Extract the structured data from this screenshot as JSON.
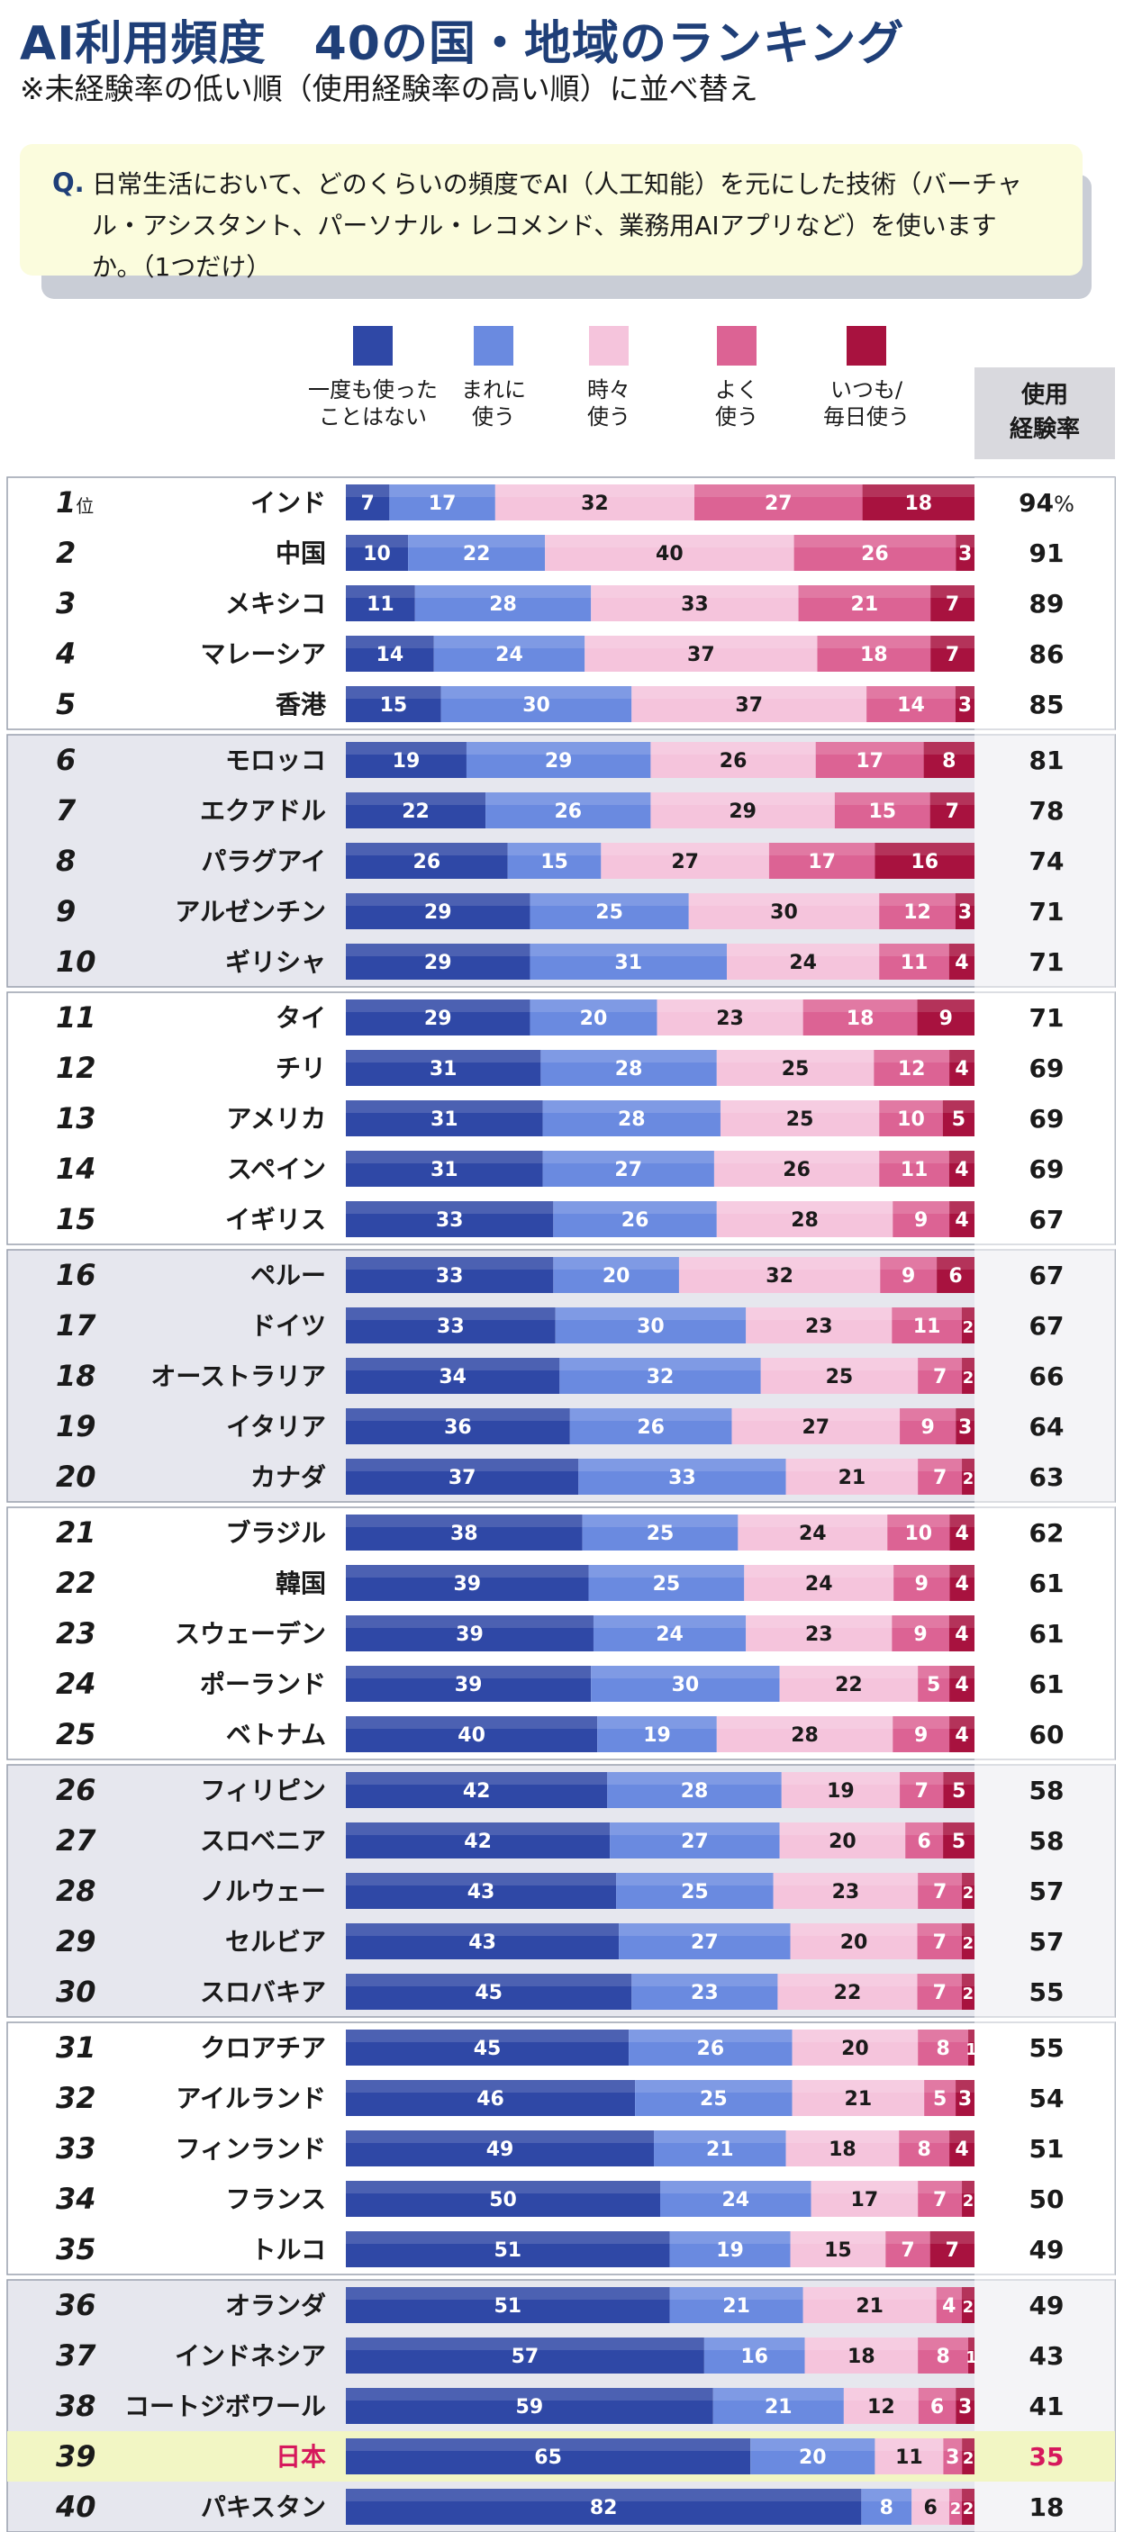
{
  "title": "AI利用頻度　40の国・地域のランキング",
  "subtitle": "※未経験率の低い順（使用経験率の高い順）に並べ替え",
  "question": {
    "label": "Q.",
    "text": "日常生活において、どのくらいの頻度でAI（人工知能）を元にした技術（バーチャル・アシスタント、パーソナル・レコメンド、業務用AIアプリなど）を使いますか。（1つだけ）"
  },
  "legend": [
    {
      "label": "一度も使った\nことはない",
      "color": "#2f48a6"
    },
    {
      "label": "まれに\n使う",
      "color": "#6a8ae0"
    },
    {
      "label": "時々\n使う",
      "color": "#f5c4dc"
    },
    {
      "label": "よく\n使う",
      "color": "#dc6394"
    },
    {
      "label": "いつも/\n毎日使う",
      "color": "#a8123f"
    }
  ],
  "column_header": "使用\n経験率",
  "rank_suffix": "位",
  "percent_suffix": "%",
  "highlight_color": "#d6185c",
  "chart_data": {
    "type": "bar",
    "orientation": "horizontal",
    "stacked": true,
    "xlim": [
      0,
      100
    ],
    "series_names": [
      "一度も使ったことはない",
      "まれに使う",
      "時々使う",
      "よく使う",
      "いつも/毎日使う"
    ],
    "rows": [
      {
        "rank": 1,
        "country": "インド",
        "values": [
          7,
          17,
          32,
          27,
          18
        ],
        "experience": 94
      },
      {
        "rank": 2,
        "country": "中国",
        "values": [
          10,
          22,
          40,
          26,
          3
        ],
        "experience": 91
      },
      {
        "rank": 3,
        "country": "メキシコ",
        "values": [
          11,
          28,
          33,
          21,
          7
        ],
        "experience": 89
      },
      {
        "rank": 4,
        "country": "マレーシア",
        "values": [
          14,
          24,
          37,
          18,
          7
        ],
        "experience": 86
      },
      {
        "rank": 5,
        "country": "香港",
        "values": [
          15,
          30,
          37,
          14,
          3
        ],
        "experience": 85
      },
      {
        "rank": 6,
        "country": "モロッコ",
        "values": [
          19,
          29,
          26,
          17,
          8
        ],
        "experience": 81
      },
      {
        "rank": 7,
        "country": "エクアドル",
        "values": [
          22,
          26,
          29,
          15,
          7
        ],
        "experience": 78
      },
      {
        "rank": 8,
        "country": "パラグアイ",
        "values": [
          26,
          15,
          27,
          17,
          16
        ],
        "experience": 74
      },
      {
        "rank": 9,
        "country": "アルゼンチン",
        "values": [
          29,
          25,
          30,
          12,
          3
        ],
        "experience": 71
      },
      {
        "rank": 10,
        "country": "ギリシャ",
        "values": [
          29,
          31,
          24,
          11,
          4
        ],
        "experience": 71
      },
      {
        "rank": 11,
        "country": "タイ",
        "values": [
          29,
          20,
          23,
          18,
          9
        ],
        "experience": 71
      },
      {
        "rank": 12,
        "country": "チリ",
        "values": [
          31,
          28,
          25,
          12,
          4
        ],
        "experience": 69
      },
      {
        "rank": 13,
        "country": "アメリカ",
        "values": [
          31,
          28,
          25,
          10,
          5
        ],
        "experience": 69
      },
      {
        "rank": 14,
        "country": "スペイン",
        "values": [
          31,
          27,
          26,
          11,
          4
        ],
        "experience": 69
      },
      {
        "rank": 15,
        "country": "イギリス",
        "values": [
          33,
          26,
          28,
          9,
          4
        ],
        "experience": 67
      },
      {
        "rank": 16,
        "country": "ペルー",
        "values": [
          33,
          20,
          32,
          9,
          6
        ],
        "experience": 67
      },
      {
        "rank": 17,
        "country": "ドイツ",
        "values": [
          33,
          30,
          23,
          11,
          2
        ],
        "experience": 67
      },
      {
        "rank": 18,
        "country": "オーストラリア",
        "values": [
          34,
          32,
          25,
          7,
          2
        ],
        "experience": 66
      },
      {
        "rank": 19,
        "country": "イタリア",
        "values": [
          36,
          26,
          27,
          9,
          3
        ],
        "experience": 64
      },
      {
        "rank": 20,
        "country": "カナダ",
        "values": [
          37,
          33,
          21,
          7,
          2
        ],
        "experience": 63
      },
      {
        "rank": 21,
        "country": "ブラジル",
        "values": [
          38,
          25,
          24,
          10,
          4
        ],
        "experience": 62
      },
      {
        "rank": 22,
        "country": "韓国",
        "values": [
          39,
          25,
          24,
          9,
          4
        ],
        "experience": 61
      },
      {
        "rank": 23,
        "country": "スウェーデン",
        "values": [
          39,
          24,
          23,
          9,
          4
        ],
        "experience": 61
      },
      {
        "rank": 24,
        "country": "ポーランド",
        "values": [
          39,
          30,
          22,
          5,
          4
        ],
        "experience": 61
      },
      {
        "rank": 25,
        "country": "ベトナム",
        "values": [
          40,
          19,
          28,
          9,
          4
        ],
        "experience": 60
      },
      {
        "rank": 26,
        "country": "フィリピン",
        "values": [
          42,
          28,
          19,
          7,
          5
        ],
        "experience": 58
      },
      {
        "rank": 27,
        "country": "スロベニア",
        "values": [
          42,
          27,
          20,
          6,
          5
        ],
        "experience": 58
      },
      {
        "rank": 28,
        "country": "ノルウェー",
        "values": [
          43,
          25,
          23,
          7,
          2
        ],
        "experience": 57
      },
      {
        "rank": 29,
        "country": "セルビア",
        "values": [
          43,
          27,
          20,
          7,
          2
        ],
        "experience": 57
      },
      {
        "rank": 30,
        "country": "スロバキア",
        "values": [
          45,
          23,
          22,
          7,
          2
        ],
        "experience": 55
      },
      {
        "rank": 31,
        "country": "クロアチア",
        "values": [
          45,
          26,
          20,
          8,
          1
        ],
        "experience": 55
      },
      {
        "rank": 32,
        "country": "アイルランド",
        "values": [
          46,
          25,
          21,
          5,
          3
        ],
        "experience": 54
      },
      {
        "rank": 33,
        "country": "フィンランド",
        "values": [
          49,
          21,
          18,
          8,
          4
        ],
        "experience": 51
      },
      {
        "rank": 34,
        "country": "フランス",
        "values": [
          50,
          24,
          17,
          7,
          2
        ],
        "experience": 50
      },
      {
        "rank": 35,
        "country": "トルコ",
        "values": [
          51,
          19,
          15,
          7,
          7
        ],
        "experience": 49
      },
      {
        "rank": 36,
        "country": "オランダ",
        "values": [
          51,
          21,
          21,
          4,
          2
        ],
        "experience": 49
      },
      {
        "rank": 37,
        "country": "インドネシア",
        "values": [
          57,
          16,
          18,
          8,
          1
        ],
        "experience": 43
      },
      {
        "rank": 38,
        "country": "コートジボワール",
        "values": [
          59,
          21,
          12,
          6,
          3
        ],
        "experience": 41
      },
      {
        "rank": 39,
        "country": "日本",
        "values": [
          65,
          20,
          11,
          3,
          2
        ],
        "experience": 35,
        "highlight": true
      },
      {
        "rank": 40,
        "country": "パキスタン",
        "values": [
          82,
          8,
          6,
          2,
          2
        ],
        "experience": 18
      }
    ]
  }
}
